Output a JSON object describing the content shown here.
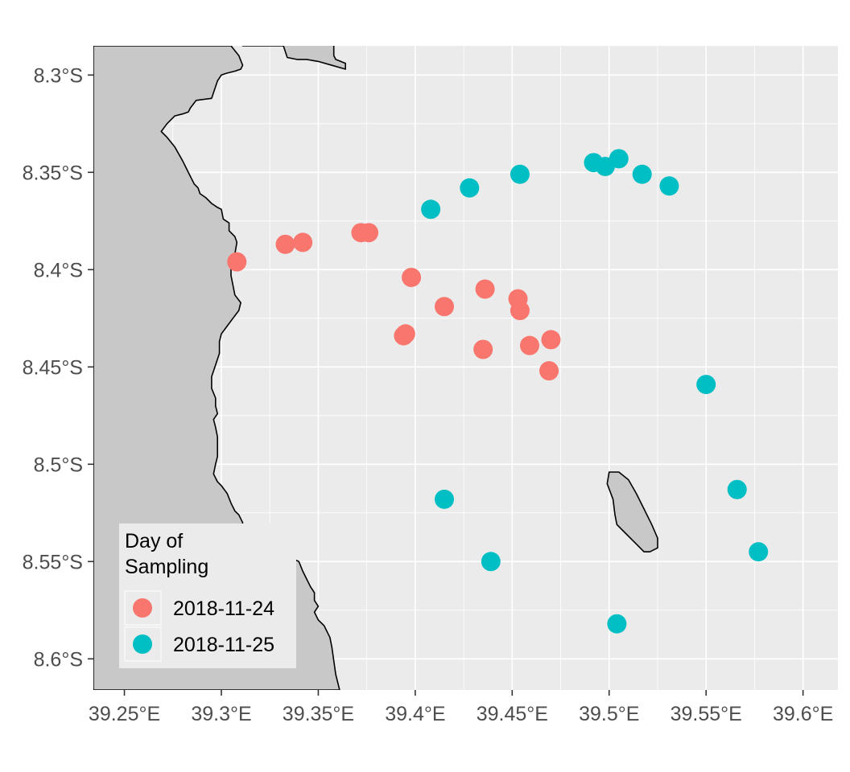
{
  "chart_data": {
    "type": "scatter",
    "xlim": [
      39.234,
      39.618
    ],
    "ylim": [
      -8.616,
      -8.285
    ],
    "x_ticks": [
      39.25,
      39.3,
      39.35,
      39.4,
      39.45,
      39.5,
      39.55,
      39.6
    ],
    "x_tick_labels": [
      "39.25°E",
      "39.3°E",
      "39.35°E",
      "39.4°E",
      "39.45°E",
      "39.5°E",
      "39.55°E",
      "39.6°E"
    ],
    "y_ticks": [
      -8.3,
      -8.35,
      -8.4,
      -8.45,
      -8.5,
      -8.55,
      -8.6
    ],
    "y_tick_labels": [
      "8.3°S",
      "8.35°S",
      "8.4°S",
      "8.45°S",
      "8.5°S",
      "8.55°S",
      "8.6°S"
    ],
    "grid": true,
    "legend": {
      "title_lines": [
        "Day of",
        "Sampling"
      ],
      "placement": "bottom-left inside",
      "entries": [
        "2018-11-24",
        "2018-11-25"
      ]
    },
    "colors": {
      "panel": "#ebebeb",
      "land": "#c8c8c8",
      "grid": "#ffffff",
      "coast": "#000000"
    },
    "series": [
      {
        "name": "2018-11-24",
        "color": "#F8766D",
        "points": [
          [
            39.308,
            -8.396
          ],
          [
            39.333,
            -8.387
          ],
          [
            39.342,
            -8.386
          ],
          [
            39.372,
            -8.381
          ],
          [
            39.376,
            -8.381
          ],
          [
            39.398,
            -8.404
          ],
          [
            39.394,
            -8.434
          ],
          [
            39.395,
            -8.433
          ],
          [
            39.415,
            -8.419
          ],
          [
            39.436,
            -8.41
          ],
          [
            39.453,
            -8.415
          ],
          [
            39.454,
            -8.421
          ],
          [
            39.435,
            -8.441
          ],
          [
            39.459,
            -8.439
          ],
          [
            39.47,
            -8.436
          ],
          [
            39.469,
            -8.452
          ]
        ]
      },
      {
        "name": "2018-11-25",
        "color": "#00BFC4",
        "points": [
          [
            39.408,
            -8.369
          ],
          [
            39.428,
            -8.358
          ],
          [
            39.454,
            -8.351
          ],
          [
            39.492,
            -8.345
          ],
          [
            39.498,
            -8.347
          ],
          [
            39.505,
            -8.343
          ],
          [
            39.517,
            -8.351
          ],
          [
            39.531,
            -8.357
          ],
          [
            39.55,
            -8.459
          ],
          [
            39.566,
            -8.513
          ],
          [
            39.577,
            -8.545
          ],
          [
            39.415,
            -8.518
          ],
          [
            39.439,
            -8.55
          ],
          [
            39.504,
            -8.582
          ]
        ]
      }
    ],
    "land": {
      "mainland": [
        [
          39.234,
          -8.285
        ],
        [
          39.305,
          -8.285
        ],
        [
          39.309,
          -8.29
        ],
        [
          39.311,
          -8.295
        ],
        [
          39.31,
          -8.297
        ],
        [
          39.307,
          -8.298
        ],
        [
          39.303,
          -8.299
        ],
        [
          39.3,
          -8.3
        ],
        [
          39.298,
          -8.303
        ],
        [
          39.296,
          -8.309
        ],
        [
          39.295,
          -8.312
        ],
        [
          39.287,
          -8.313
        ],
        [
          39.284,
          -8.317
        ],
        [
          39.283,
          -8.319
        ],
        [
          39.28,
          -8.32
        ],
        [
          39.276,
          -8.321
        ],
        [
          39.272,
          -8.325
        ],
        [
          39.269,
          -8.329
        ],
        [
          39.272,
          -8.332
        ],
        [
          39.276,
          -8.337
        ],
        [
          39.28,
          -8.344
        ],
        [
          39.282,
          -8.348
        ],
        [
          39.284,
          -8.352
        ],
        [
          39.286,
          -8.356
        ],
        [
          39.288,
          -8.358
        ],
        [
          39.289,
          -8.361
        ],
        [
          39.292,
          -8.363
        ],
        [
          39.295,
          -8.366
        ],
        [
          39.298,
          -8.368
        ],
        [
          39.3,
          -8.369
        ],
        [
          39.301,
          -8.374
        ],
        [
          39.304,
          -8.376
        ],
        [
          39.304,
          -8.38
        ],
        [
          39.307,
          -8.383
        ],
        [
          39.308,
          -8.386
        ],
        [
          39.307,
          -8.392
        ],
        [
          39.305,
          -8.397
        ],
        [
          39.305,
          -8.403
        ],
        [
          39.306,
          -8.408
        ],
        [
          39.307,
          -8.413
        ],
        [
          39.31,
          -8.417
        ],
        [
          39.309,
          -8.421
        ],
        [
          39.306,
          -8.425
        ],
        [
          39.303,
          -8.429
        ],
        [
          39.3,
          -8.433
        ],
        [
          39.299,
          -8.437
        ],
        [
          39.299,
          -8.443
        ],
        [
          39.297,
          -8.449
        ],
        [
          39.295,
          -8.455
        ],
        [
          39.295,
          -8.461
        ],
        [
          39.297,
          -8.466
        ],
        [
          39.297,
          -8.47
        ],
        [
          39.298,
          -8.474
        ],
        [
          39.296,
          -8.477
        ],
        [
          39.297,
          -8.481
        ],
        [
          39.298,
          -8.486
        ],
        [
          39.298,
          -8.491
        ],
        [
          39.298,
          -8.496
        ],
        [
          39.297,
          -8.5
        ],
        [
          39.296,
          -8.505
        ],
        [
          39.298,
          -8.509
        ],
        [
          39.3,
          -8.511
        ],
        [
          39.303,
          -8.515
        ],
        [
          39.305,
          -8.52
        ],
        [
          39.307,
          -8.524
        ],
        [
          39.309,
          -8.526
        ],
        [
          39.311,
          -8.53
        ],
        [
          39.31,
          -8.535
        ],
        [
          39.312,
          -8.541
        ],
        [
          39.313,
          -8.545
        ],
        [
          39.316,
          -8.542
        ],
        [
          39.318,
          -8.538
        ],
        [
          39.32,
          -8.536
        ],
        [
          39.321,
          -8.541
        ],
        [
          39.32,
          -8.547
        ],
        [
          39.322,
          -8.547
        ],
        [
          39.325,
          -8.548
        ],
        [
          39.33,
          -8.547
        ],
        [
          39.336,
          -8.548
        ],
        [
          39.34,
          -8.55
        ],
        [
          39.342,
          -8.555
        ],
        [
          39.344,
          -8.559
        ],
        [
          39.346,
          -8.563
        ],
        [
          39.348,
          -8.566
        ],
        [
          39.348,
          -8.57
        ],
        [
          39.35,
          -8.573
        ],
        [
          39.348,
          -8.576
        ],
        [
          39.35,
          -8.58
        ],
        [
          39.353,
          -8.583
        ],
        [
          39.356,
          -8.589
        ],
        [
          39.357,
          -8.594
        ],
        [
          39.358,
          -8.601
        ],
        [
          39.359,
          -8.608
        ],
        [
          39.361,
          -8.616
        ],
        [
          39.234,
          -8.616
        ]
      ],
      "northern": [
        [
          39.311,
          -8.285
        ],
        [
          39.332,
          -8.285
        ],
        [
          39.333,
          -8.288
        ],
        [
          39.334,
          -8.291
        ],
        [
          39.339,
          -8.292
        ],
        [
          39.344,
          -8.292
        ],
        [
          39.35,
          -8.293
        ],
        [
          39.357,
          -8.295
        ],
        [
          39.364,
          -8.297
        ],
        [
          39.364,
          -8.294
        ],
        [
          39.359,
          -8.292
        ],
        [
          39.358,
          -8.29
        ],
        [
          39.358,
          -8.285
        ],
        [
          39.359,
          -8.282
        ],
        [
          39.344,
          -8.282
        ],
        [
          39.334,
          -8.282
        ],
        [
          39.311,
          -8.282
        ]
      ],
      "island": [
        [
          39.5,
          -8.504
        ],
        [
          39.505,
          -8.504
        ],
        [
          39.51,
          -8.508
        ],
        [
          39.514,
          -8.515
        ],
        [
          39.518,
          -8.523
        ],
        [
          39.522,
          -8.531
        ],
        [
          39.525,
          -8.538
        ],
        [
          39.525,
          -8.543
        ],
        [
          39.521,
          -8.545
        ],
        [
          39.518,
          -8.545
        ],
        [
          39.513,
          -8.54
        ],
        [
          39.508,
          -8.535
        ],
        [
          39.504,
          -8.531
        ],
        [
          39.503,
          -8.526
        ],
        [
          39.502,
          -8.518
        ],
        [
          39.499,
          -8.51
        ]
      ]
    }
  }
}
